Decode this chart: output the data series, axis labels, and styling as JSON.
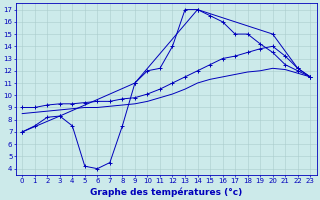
{
  "title": "Graphe des températures (°c)",
  "bg_color": "#cceaea",
  "line_color": "#0000bb",
  "xlim": [
    -0.5,
    23.5
  ],
  "ylim": [
    3.5,
    17.5
  ],
  "xticks": [
    0,
    1,
    2,
    3,
    4,
    5,
    6,
    7,
    8,
    9,
    10,
    11,
    12,
    13,
    14,
    15,
    16,
    17,
    18,
    19,
    20,
    21,
    22,
    23
  ],
  "yticks": [
    4,
    5,
    6,
    7,
    8,
    9,
    10,
    11,
    12,
    13,
    14,
    15,
    16,
    17
  ],
  "grid_color": "#aacccc",
  "tick_fontsize": 5.0,
  "label_fontsize": 6.5,
  "line_width": 0.7,
  "marker_size": 2.5,
  "series1_x": [
    0,
    1,
    2,
    3,
    4,
    5,
    6,
    7,
    8,
    9,
    10,
    11,
    12,
    13,
    14,
    15,
    16,
    17,
    18,
    19,
    20,
    21,
    22,
    23
  ],
  "series1_y": [
    7.0,
    7.5,
    8.2,
    8.3,
    7.5,
    4.2,
    4.0,
    4.5,
    7.5,
    11.0,
    12.0,
    12.2,
    14.0,
    17.0,
    17.0,
    16.5,
    16.0,
    15.0,
    15.0,
    14.2,
    13.5,
    12.5,
    12.0,
    11.5
  ],
  "series2_x": [
    0,
    1,
    2,
    3,
    4,
    5,
    6,
    7,
    8,
    9,
    10,
    11,
    12,
    13,
    14,
    15,
    16,
    17,
    18,
    19,
    20,
    21,
    22,
    23
  ],
  "series2_y": [
    9.0,
    9.0,
    9.2,
    9.3,
    9.3,
    9.4,
    9.5,
    9.5,
    9.7,
    9.8,
    10.1,
    10.5,
    11.0,
    11.5,
    12.0,
    12.5,
    13.0,
    13.2,
    13.5,
    13.8,
    14.0,
    13.2,
    12.2,
    11.5
  ],
  "series3_x": [
    0,
    1,
    2,
    3,
    4,
    5,
    6,
    7,
    8,
    9,
    10,
    11,
    12,
    13,
    14,
    15,
    16,
    17,
    18,
    19,
    20,
    21,
    22,
    23
  ],
  "series3_y": [
    8.5,
    8.6,
    8.7,
    8.8,
    8.9,
    9.0,
    9.0,
    9.1,
    9.2,
    9.3,
    9.5,
    9.8,
    10.1,
    10.5,
    11.0,
    11.3,
    11.5,
    11.7,
    11.9,
    12.0,
    12.2,
    12.1,
    11.8,
    11.5
  ],
  "series4_x": [
    0,
    3,
    9,
    14,
    20,
    22,
    23
  ],
  "series4_y": [
    7.0,
    8.3,
    11.0,
    17.0,
    15.0,
    12.2,
    11.5
  ]
}
